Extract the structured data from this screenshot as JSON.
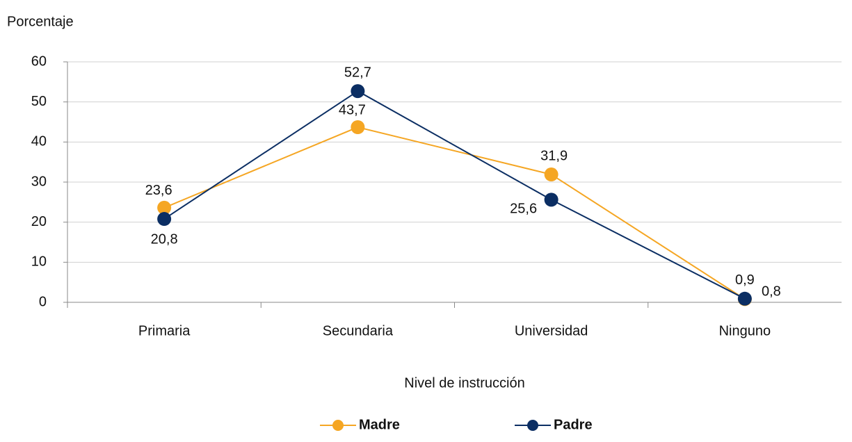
{
  "chart_data": {
    "type": "line",
    "y_label": "Porcentaje",
    "x_label": "Nivel de instrucción",
    "categories": [
      "Primaria",
      "Secundaria",
      "Universidad",
      "Ninguno"
    ],
    "series": [
      {
        "name": "Madre",
        "color": "#f5a623",
        "values": [
          23.6,
          43.7,
          31.9,
          0.8
        ],
        "value_labels": [
          "23,6",
          "43,7",
          "31,9",
          "0,8"
        ]
      },
      {
        "name": "Padre",
        "color": "#0b2e63",
        "values": [
          20.8,
          52.7,
          25.6,
          0.9
        ],
        "value_labels": [
          "20,8",
          "52,7",
          "25,6",
          "0,9"
        ]
      }
    ],
    "ylim": [
      0,
      60
    ],
    "yticks": [
      0,
      10,
      20,
      30,
      40,
      50,
      60
    ],
    "grid": true,
    "legend": "bottom"
  }
}
